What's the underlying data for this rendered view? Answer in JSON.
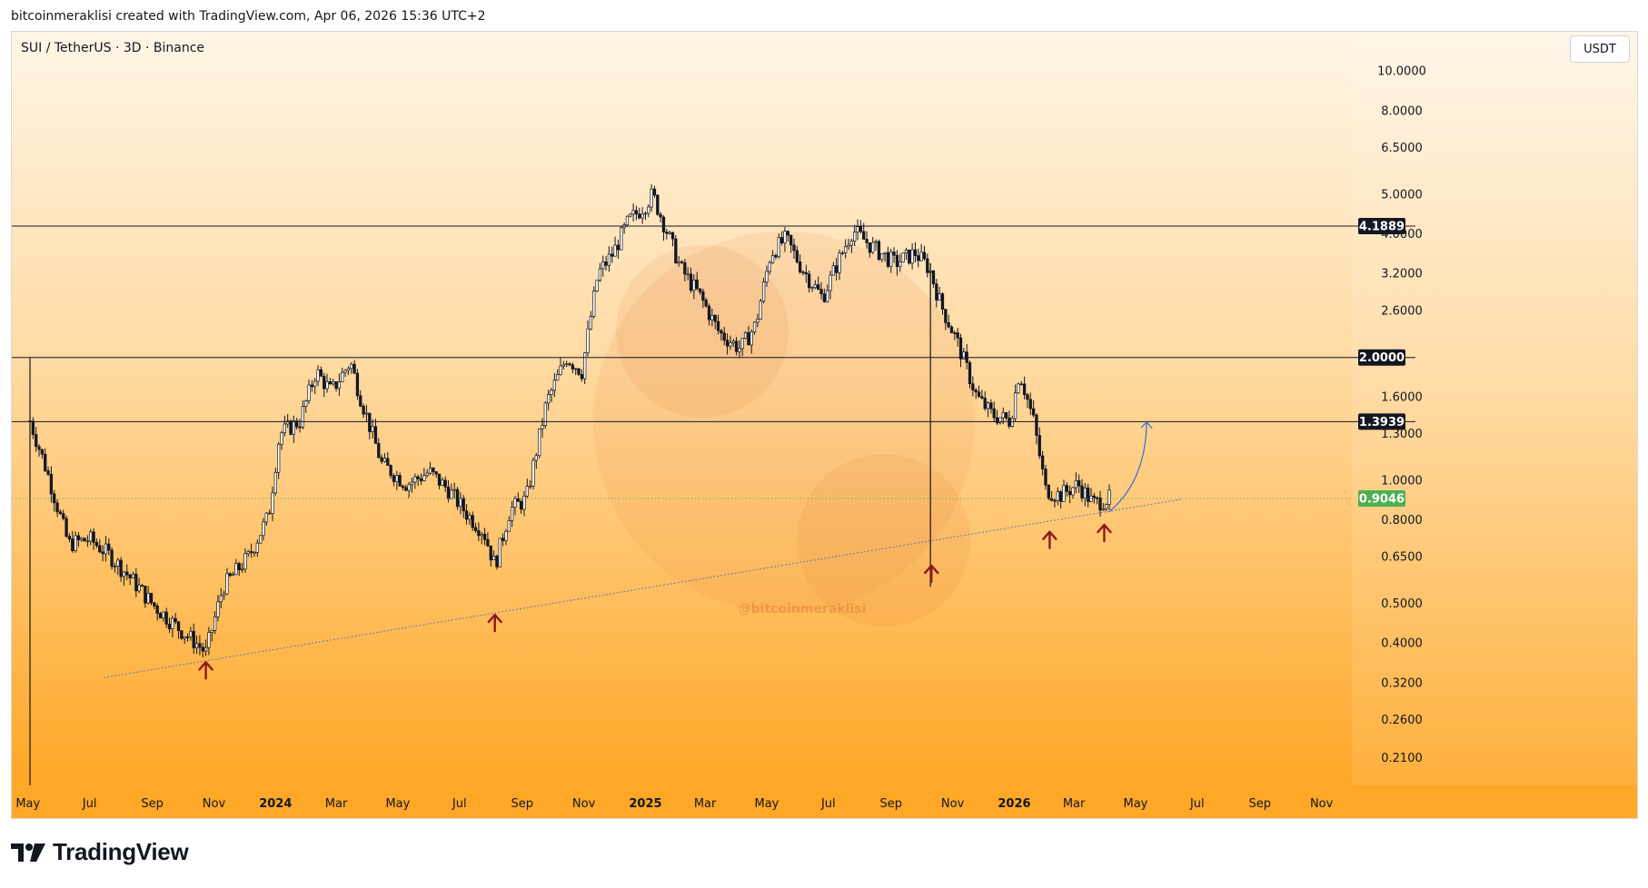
{
  "header": {
    "credit": "bitcoinmeraklisi created with TradingView.com, Apr 06, 2026 15:36 UTC+2"
  },
  "symbol_title": "SUI / TetherUS · 3D · Binance",
  "currency": "USDT",
  "brand": {
    "name": "TradingView"
  },
  "watermark": "@bitcoinmeraklisi",
  "colors": {
    "up_candle": "#131722",
    "down_candle": "#131722",
    "bg_top": "#fff5e6",
    "bg_bottom": "#ffa726",
    "horizontal_line": "#131722",
    "trendline": "#5b7db8",
    "projection_arrow": "#3a6bd8",
    "arrow_marker": "#8b1a1a",
    "current_price_label": "#4caf50"
  },
  "chart_data": {
    "type": "candlestick",
    "scale": "log",
    "title": "SUI / TetherUS · 3D · Binance",
    "ylim": [
      0.18,
      12.5
    ],
    "xlim": [
      "2023-04-15",
      "2026-12-01"
    ],
    "y_ticks": [
      "10.0000",
      "8.0000",
      "6.5000",
      "5.0000",
      "4.0000",
      "3.2000",
      "2.6000",
      "1.6000",
      "1.3000",
      "1.0000",
      "0.8000",
      "0.6500",
      "0.5000",
      "0.4000",
      "0.3200",
      "0.2600",
      "0.2100"
    ],
    "x_ticks": [
      {
        "label": "May",
        "date": "2023-05-01",
        "bold": false
      },
      {
        "label": "Jul",
        "date": "2023-07-01",
        "bold": false
      },
      {
        "label": "Sep",
        "date": "2023-09-01",
        "bold": false
      },
      {
        "label": "Nov",
        "date": "2023-11-01",
        "bold": false
      },
      {
        "label": "2024",
        "date": "2024-01-01",
        "bold": true
      },
      {
        "label": "Mar",
        "date": "2024-03-01",
        "bold": false
      },
      {
        "label": "May",
        "date": "2024-05-01",
        "bold": false
      },
      {
        "label": "Jul",
        "date": "2024-07-01",
        "bold": false
      },
      {
        "label": "Sep",
        "date": "2024-09-01",
        "bold": false
      },
      {
        "label": "Nov",
        "date": "2024-11-01",
        "bold": false
      },
      {
        "label": "2025",
        "date": "2025-01-01",
        "bold": true
      },
      {
        "label": "Mar",
        "date": "2025-03-01",
        "bold": false
      },
      {
        "label": "May",
        "date": "2025-05-01",
        "bold": false
      },
      {
        "label": "Jul",
        "date": "2025-07-01",
        "bold": false
      },
      {
        "label": "Sep",
        "date": "2025-09-01",
        "bold": false
      },
      {
        "label": "Nov",
        "date": "2025-11-01",
        "bold": false
      },
      {
        "label": "2026",
        "date": "2026-01-01",
        "bold": true
      },
      {
        "label": "Mar",
        "date": "2026-03-01",
        "bold": false
      },
      {
        "label": "May",
        "date": "2026-05-01",
        "bold": false
      },
      {
        "label": "Jul",
        "date": "2026-07-01",
        "bold": false
      },
      {
        "label": "Sep",
        "date": "2026-09-01",
        "bold": false
      },
      {
        "label": "Nov",
        "date": "2026-11-01",
        "bold": false
      }
    ],
    "horizontal_levels": [
      {
        "price": 4.1889,
        "label": "4.1889"
      },
      {
        "price": 2.0,
        "label": "2.0000"
      },
      {
        "price": 1.3939,
        "label": "1.3939"
      }
    ],
    "current_price": {
      "price": 0.9046,
      "label": "0.9046"
    },
    "price_path": [
      {
        "date": "2023-05-03",
        "close": 1.4
      },
      {
        "date": "2023-05-20",
        "close": 1.05
      },
      {
        "date": "2023-06-10",
        "close": 0.7
      },
      {
        "date": "2023-07-01",
        "close": 0.72
      },
      {
        "date": "2023-07-20",
        "close": 0.66
      },
      {
        "date": "2023-08-10",
        "close": 0.58
      },
      {
        "date": "2023-09-01",
        "close": 0.5
      },
      {
        "date": "2023-09-25",
        "close": 0.44
      },
      {
        "date": "2023-10-15",
        "close": 0.4
      },
      {
        "date": "2023-10-24",
        "close": 0.38
      },
      {
        "date": "2023-11-10",
        "close": 0.55
      },
      {
        "date": "2023-12-05",
        "close": 0.65
      },
      {
        "date": "2023-12-25",
        "close": 0.82
      },
      {
        "date": "2024-01-05",
        "close": 1.3
      },
      {
        "date": "2024-01-25",
        "close": 1.4
      },
      {
        "date": "2024-02-10",
        "close": 1.85
      },
      {
        "date": "2024-02-25",
        "close": 1.65
      },
      {
        "date": "2024-03-15",
        "close": 1.95
      },
      {
        "date": "2024-03-25",
        "close": 1.6
      },
      {
        "date": "2024-04-15",
        "close": 1.1
      },
      {
        "date": "2024-05-10",
        "close": 0.98
      },
      {
        "date": "2024-06-01",
        "close": 1.05
      },
      {
        "date": "2024-06-20",
        "close": 0.95
      },
      {
        "date": "2024-07-10",
        "close": 0.82
      },
      {
        "date": "2024-07-25",
        "close": 0.75
      },
      {
        "date": "2024-08-05",
        "close": 0.62
      },
      {
        "date": "2024-08-20",
        "close": 0.85
      },
      {
        "date": "2024-09-05",
        "close": 0.9
      },
      {
        "date": "2024-09-25",
        "close": 1.55
      },
      {
        "date": "2024-10-15",
        "close": 2.0
      },
      {
        "date": "2024-10-30",
        "close": 1.85
      },
      {
        "date": "2024-11-15",
        "close": 3.2
      },
      {
        "date": "2024-11-30",
        "close": 3.6
      },
      {
        "date": "2024-12-15",
        "close": 4.3
      },
      {
        "date": "2024-12-31",
        "close": 4.7
      },
      {
        "date": "2025-01-08",
        "close": 5.0
      },
      {
        "date": "2025-01-20",
        "close": 4.2
      },
      {
        "date": "2025-02-05",
        "close": 3.3
      },
      {
        "date": "2025-02-25",
        "close": 2.8
      },
      {
        "date": "2025-03-15",
        "close": 2.3
      },
      {
        "date": "2025-04-05",
        "close": 2.1
      },
      {
        "date": "2025-04-20",
        "close": 2.4
      },
      {
        "date": "2025-05-05",
        "close": 3.6
      },
      {
        "date": "2025-05-20",
        "close": 3.9
      },
      {
        "date": "2025-06-05",
        "close": 3.3
      },
      {
        "date": "2025-06-25",
        "close": 2.8
      },
      {
        "date": "2025-07-10",
        "close": 3.4
      },
      {
        "date": "2025-07-25",
        "close": 4.1
      },
      {
        "date": "2025-08-15",
        "close": 3.7
      },
      {
        "date": "2025-09-05",
        "close": 3.4
      },
      {
        "date": "2025-09-25",
        "close": 3.6
      },
      {
        "date": "2025-10-09",
        "close": 3.3
      },
      {
        "date": "2025-10-20",
        "close": 2.7
      },
      {
        "date": "2025-11-05",
        "close": 2.2
      },
      {
        "date": "2025-11-25",
        "close": 1.6
      },
      {
        "date": "2025-12-10",
        "close": 1.45
      },
      {
        "date": "2025-12-28",
        "close": 1.4
      },
      {
        "date": "2026-01-06",
        "close": 1.85
      },
      {
        "date": "2026-01-20",
        "close": 1.4
      },
      {
        "date": "2026-02-01",
        "close": 0.95
      },
      {
        "date": "2026-02-15",
        "close": 0.92
      },
      {
        "date": "2026-03-05",
        "close": 0.98
      },
      {
        "date": "2026-03-20",
        "close": 0.88
      },
      {
        "date": "2026-04-05",
        "close": 0.9046
      }
    ],
    "spikes": [
      {
        "date": "2023-05-03",
        "high": 2.0,
        "low": 0.18
      },
      {
        "date": "2025-10-10",
        "high": 3.4,
        "low": 0.55
      }
    ],
    "trendline": [
      {
        "date": "2023-07-15",
        "price": 0.33
      },
      {
        "date": "2026-06-15",
        "price": 0.9
      }
    ],
    "projection_arrow": [
      {
        "date": "2026-04-05",
        "price": 0.84
      },
      {
        "date": "2026-04-25",
        "price": 1.05
      },
      {
        "date": "2026-05-12",
        "price": 1.39
      }
    ],
    "markers": [
      {
        "date": "2023-10-24",
        "price": 0.36
      },
      {
        "date": "2024-08-05",
        "price": 0.47
      },
      {
        "date": "2025-10-11",
        "price": 0.62
      },
      {
        "date": "2026-02-05",
        "price": 0.75
      },
      {
        "date": "2026-03-31",
        "price": 0.78
      }
    ]
  }
}
